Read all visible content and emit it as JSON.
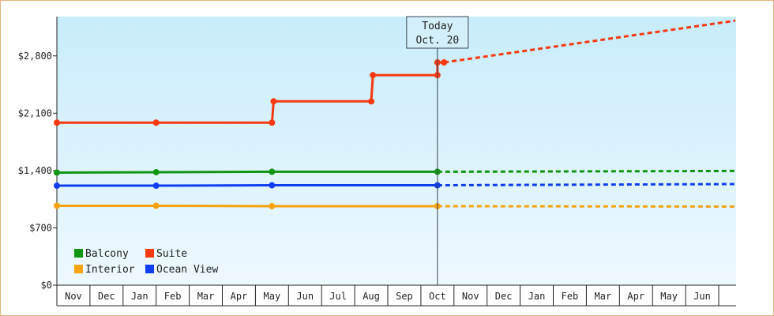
{
  "chart_data": {
    "type": "line",
    "y_ticks": [
      "$0",
      "$700",
      "$1,400",
      "$2,100",
      "$2,800"
    ],
    "y_tick_values": [
      0,
      700,
      1400,
      2100,
      2800
    ],
    "ylim": [
      0,
      3280
    ],
    "months": [
      "Nov",
      "Dec",
      "Jan",
      "Feb",
      "Mar",
      "Apr",
      "May",
      "Jun",
      "Jul",
      "Aug",
      "Sep",
      "Oct",
      "Nov",
      "Dec",
      "Jan",
      "Feb",
      "Mar",
      "Apr",
      "May",
      "Jun"
    ],
    "today": {
      "label": "Today",
      "date": "Oct. 20",
      "x": 11.5
    },
    "grid": false,
    "legend_position": "bottom-left",
    "series": [
      {
        "name": "Balcony",
        "color": "#129612",
        "points": [
          [
            0,
            1375
          ],
          [
            3,
            1380
          ],
          [
            6.5,
            1385
          ],
          [
            11.5,
            1385
          ]
        ],
        "projection": [
          [
            11.5,
            1385
          ],
          [
            20.5,
            1395
          ]
        ]
      },
      {
        "name": "Suite",
        "color": "#f53a12",
        "points": [
          [
            0,
            1985
          ],
          [
            3,
            1985
          ],
          [
            6.5,
            1985
          ],
          [
            6.55,
            2245
          ],
          [
            9.5,
            2245
          ],
          [
            9.55,
            2565
          ],
          [
            11.5,
            2565
          ],
          [
            11.5,
            2720
          ],
          [
            11.7,
            2720
          ]
        ],
        "projection": [
          [
            11.7,
            2720
          ],
          [
            20.5,
            3230
          ]
        ]
      },
      {
        "name": "Interior",
        "color": "#f5a30f",
        "points": [
          [
            0,
            970
          ],
          [
            3,
            970
          ],
          [
            6.5,
            965
          ],
          [
            11.5,
            965
          ]
        ],
        "projection": [
          [
            11.5,
            965
          ],
          [
            20.5,
            960
          ]
        ]
      },
      {
        "name": "Ocean View",
        "color": "#0f3ff0",
        "points": [
          [
            0,
            1215
          ],
          [
            3,
            1215
          ],
          [
            6.5,
            1220
          ],
          [
            11.5,
            1220
          ]
        ],
        "projection": [
          [
            11.5,
            1220
          ],
          [
            20.5,
            1235
          ]
        ]
      }
    ]
  }
}
